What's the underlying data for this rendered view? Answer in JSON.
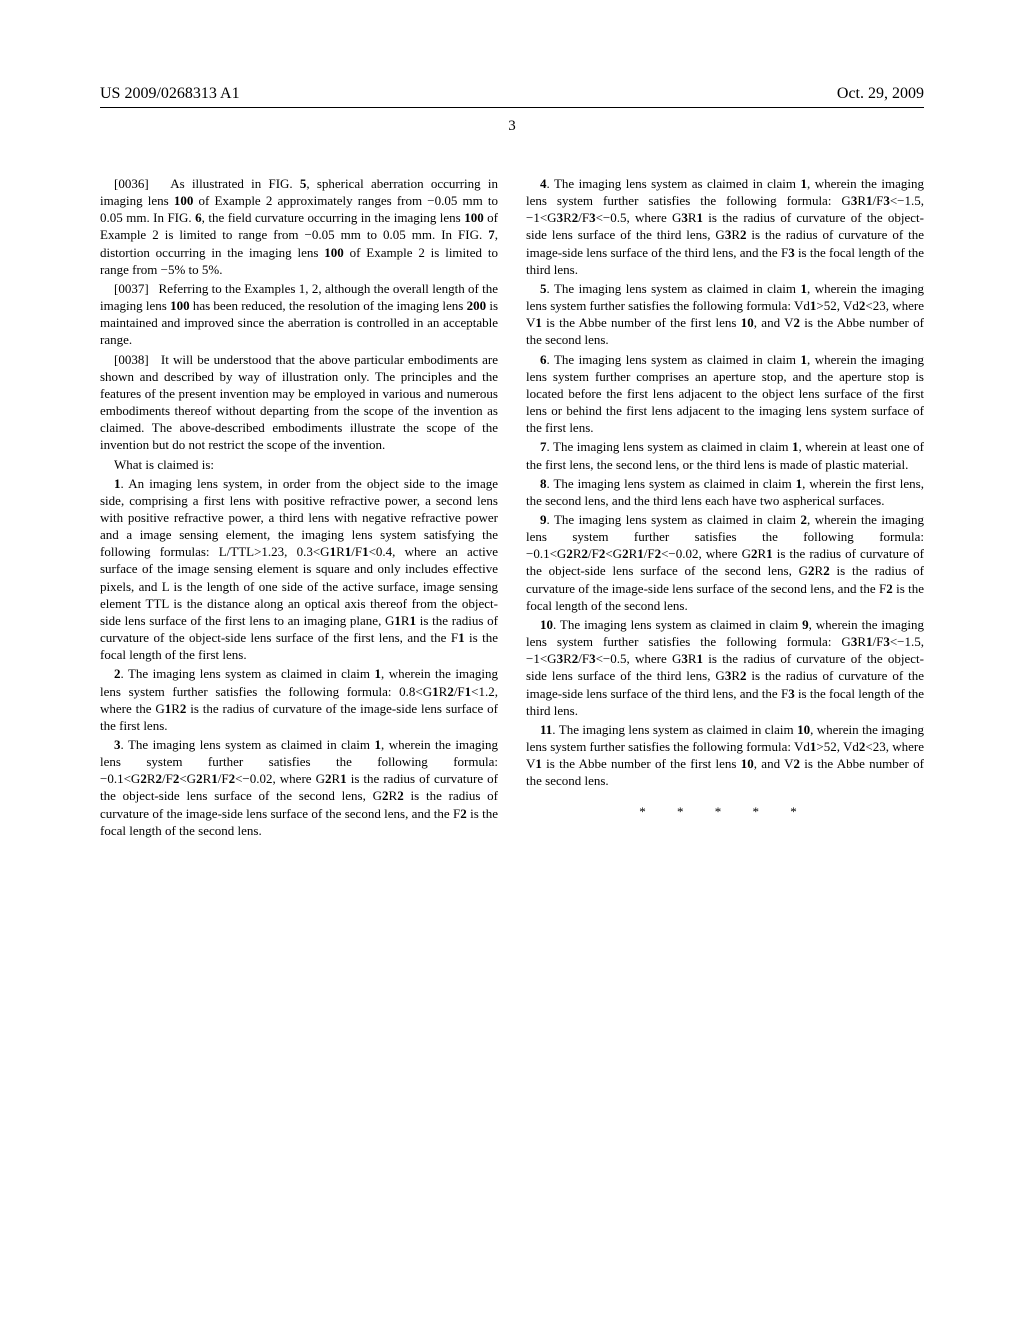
{
  "header": {
    "left": "US 2009/0268313 A1",
    "right": "Oct. 29, 2009"
  },
  "page_number": "3",
  "left_column": {
    "para36_num": "[0036]",
    "para36": " As illustrated in FIG. 5, spherical aberration occurring in imaging lens 100 of Example 2 approximately ranges from −0.05 mm to 0.05 mm. In FIG. 6, the field curvature occurring in the imaging lens 100 of Example 2 is limited to range from −0.05 mm to 0.05 mm. In FIG. 7, distortion occurring in the imaging lens 100 of Example 2 is limited to range from −5% to 5%.",
    "para37_num": "[0037]",
    "para37": " Referring to the Examples 1, 2, although the overall length of the imaging lens 100 has been reduced, the resolution of the imaging lens 200 is maintained and improved since the aberration is controlled in an acceptable range.",
    "para38_num": "[0038]",
    "para38": " It will be understood that the above particular embodiments are shown and described by way of illustration only. The principles and the features of the present invention may be employed in various and numerous embodiments thereof without departing from the scope of the invention as claimed. The above-described embodiments illustrate the scope of the invention but do not restrict the scope of the invention.",
    "claim_intro": "What is claimed is:",
    "claim1_num": "1",
    "claim1": ". An imaging lens system, in order from the object side to the image side, comprising a first lens with positive refractive power, a second lens with positive refractive power, a third lens with negative refractive power and a image sensing element, the imaging lens system satisfying the following formulas: L/TTL>1.23, 0.3<G1R1/F1<0.4, where an active surface of the image sensing element is square and only includes effective pixels, and L is the length of one side of the active surface, image sensing element TTL is the distance along an optical axis thereof from the object-side lens surface of the first lens to an imaging plane, G1R1 is the radius of curvature of the object-side lens surface of the first lens, and the F1 is the focal length of the first lens.",
    "claim2_num": "2",
    "claim2": ". The imaging lens system as claimed in claim 1, wherein the imaging lens system further satisfies the following formula: 0.8<G1R2/F1<1.2, where the G1R2 is the radius of curvature of the image-side lens surface of the first lens.",
    "claim3_num": "3",
    "claim3": ". The imaging lens system as claimed in claim 1, wherein the imaging lens system further satisfies the following formula: −0.1<G2R2/F2<G2R1/F2<−0.02, where G2R1 is the radius of curvature of the object-side lens surface of the second lens, G2R2 is the radius of curvature of the image-side lens surface of the second lens, and the F2 is the focal length of the second lens."
  },
  "right_column": {
    "claim4_num": "4",
    "claim4": ". The imaging lens system as claimed in claim 1, wherein the imaging lens system further satisfies the following formula: G3R1/F3<−1.5, −1<G3R2/F3<−0.5, where G3R1 is the radius of curvature of the object-side lens surface of the third lens, G3R2 is the radius of curvature of the image-side lens surface of the third lens, and the F3 is the focal length of the third lens.",
    "claim5_num": "5",
    "claim5": ". The imaging lens system as claimed in claim 1, wherein the imaging lens system further satisfies the following formula: Vd1>52, Vd2<23, where V1 is the Abbe number of the first lens 10, and V2 is the Abbe number of the second lens.",
    "claim6_num": "6",
    "claim6": ". The imaging lens system as claimed in claim 1, wherein the imaging lens system further comprises an aperture stop, and the aperture stop is located before the first lens adjacent to the object lens surface of the first lens or behind the first lens adjacent to the imaging lens system surface of the first lens.",
    "claim7_num": "7",
    "claim7": ". The imaging lens system as claimed in claim 1, wherein at least one of the first lens, the second lens, or the third lens is made of plastic material.",
    "claim8_num": "8",
    "claim8": ". The imaging lens system as claimed in claim 1, wherein the first lens, the second lens, and the third lens each have two aspherical surfaces.",
    "claim9_num": "9",
    "claim9": ". The imaging lens system as claimed in claim 2, wherein the imaging lens system further satisfies the following formula: −0.1<G2R2/F2<G2R1/F2<−0.02, where G2R1 is the radius of curvature of the object-side lens surface of the second lens, G2R2 is the radius of curvature of the image-side lens surface of the second lens, and the F2 is the focal length of the second lens.",
    "claim10_num": "10",
    "claim10": ". The imaging lens system as claimed in claim 9, wherein the imaging lens system further satisfies the following formula: G3R1/F3<−1.5, −1<G3R2/F3<−0.5, where G3R1 is the radius of curvature of the object-side lens surface of the third lens, G3R2 is the radius of curvature of the image-side lens surface of the third lens, and the F3 is the focal length of the third lens.",
    "claim11_num": "11",
    "claim11": ". The imaging lens system as claimed in claim 10, wherein the imaging lens system further satisfies the following formula: Vd1>52, Vd2<23, where V1 is the Abbe number of the first lens 10, and V2 is the Abbe number of the second lens.",
    "end_marks": "* * * * *"
  }
}
